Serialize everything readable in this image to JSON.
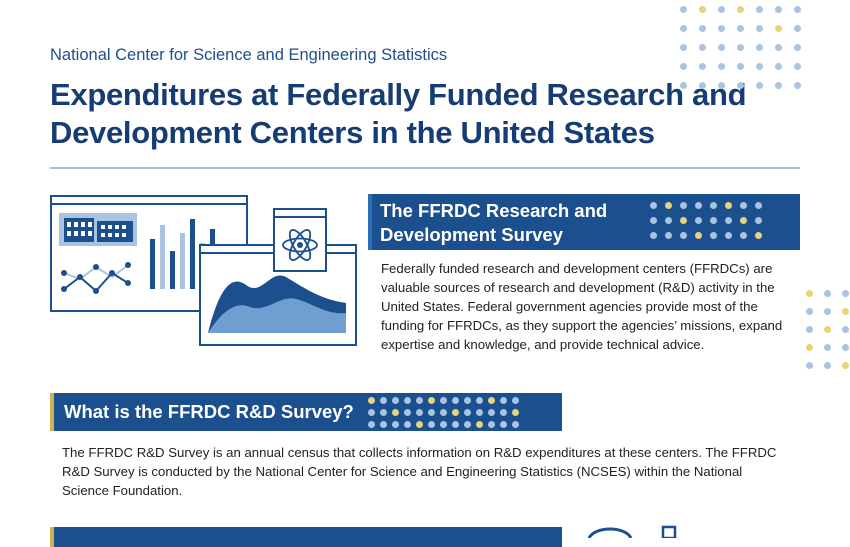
{
  "header": {
    "organization": "National Center for Science and Engineering Statistics",
    "title": "Expenditures at Federally Funded Research and Development Centers in the United States"
  },
  "section1": {
    "heading": "The FFRDC Research and Development Survey",
    "body": "Federally funded research and development centers (FFRDCs) are valuable sources of research and development (R&D) activity in the United States. Federal government agencies provide most of the funding for FFRDCs, as they support the agencies’ missions, expand expertise and knowledge, and provide technical advice."
  },
  "section2": {
    "heading": "What is the FFRDC R&D Survey?",
    "body": "The FFRDC R&D Survey is an annual census that collects information on R&D expenditures at these centers. The FFRDC R&D Survey is conducted by the National Center for Science and Engineering Statistics (NCSES) within the National Science Foundation."
  },
  "colors": {
    "navy": "#163d73",
    "band_blue": "#1b4f8e",
    "accent_gold": "#c9b458",
    "dot_blue": "#a9c4e0",
    "dot_gold": "#e6d37a",
    "rule_teal": "#9fc3d1"
  },
  "illustration": {
    "icons": [
      "building-icon",
      "bar-chart-icon",
      "line-chart-icon",
      "atom-icon",
      "area-chart-icon"
    ]
  }
}
